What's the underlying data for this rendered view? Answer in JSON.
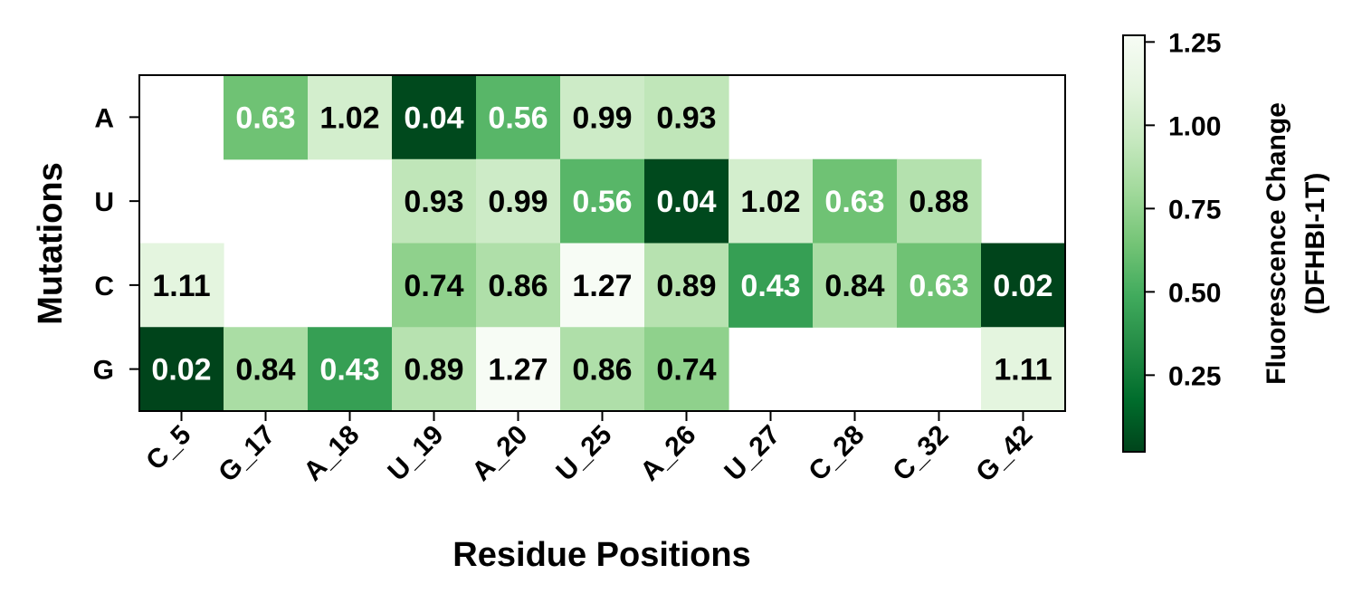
{
  "chart_data": {
    "type": "heatmap",
    "xlabel": "Residue Positions",
    "ylabel": "Mutations",
    "x_categories": [
      "C_5",
      "G_17",
      "A_18",
      "U_19",
      "A_20",
      "U_25",
      "A_26",
      "U_27",
      "C_28",
      "C_32",
      "G_42"
    ],
    "y_categories": [
      "A",
      "U",
      "C",
      "G"
    ],
    "values": [
      [
        null,
        0.63,
        1.02,
        0.04,
        0.56,
        0.99,
        0.93,
        null,
        null,
        null,
        null
      ],
      [
        null,
        null,
        null,
        0.93,
        0.99,
        0.56,
        0.04,
        1.02,
        0.63,
        0.88,
        null
      ],
      [
        1.11,
        null,
        null,
        0.74,
        0.86,
        1.27,
        0.89,
        0.43,
        0.84,
        0.63,
        0.02
      ],
      [
        0.02,
        0.84,
        0.43,
        0.89,
        1.27,
        0.86,
        0.74,
        null,
        null,
        null,
        1.11
      ]
    ],
    "colormap": "Greens_r",
    "color_range": [
      0.02,
      1.27
    ],
    "colorbar": {
      "label_line1": "Fluorescence Change",
      "label_line2": "(DFHBI-1T)",
      "ticks": [
        0.25,
        0.5,
        0.75,
        1.0,
        1.25
      ],
      "tick_labels": [
        "0.25",
        "0.50",
        "0.75",
        "1.00",
        "1.25"
      ]
    },
    "annotation_colors": {
      "dark_cell_text": "#ffffff",
      "light_cell_text": "#000000"
    }
  }
}
